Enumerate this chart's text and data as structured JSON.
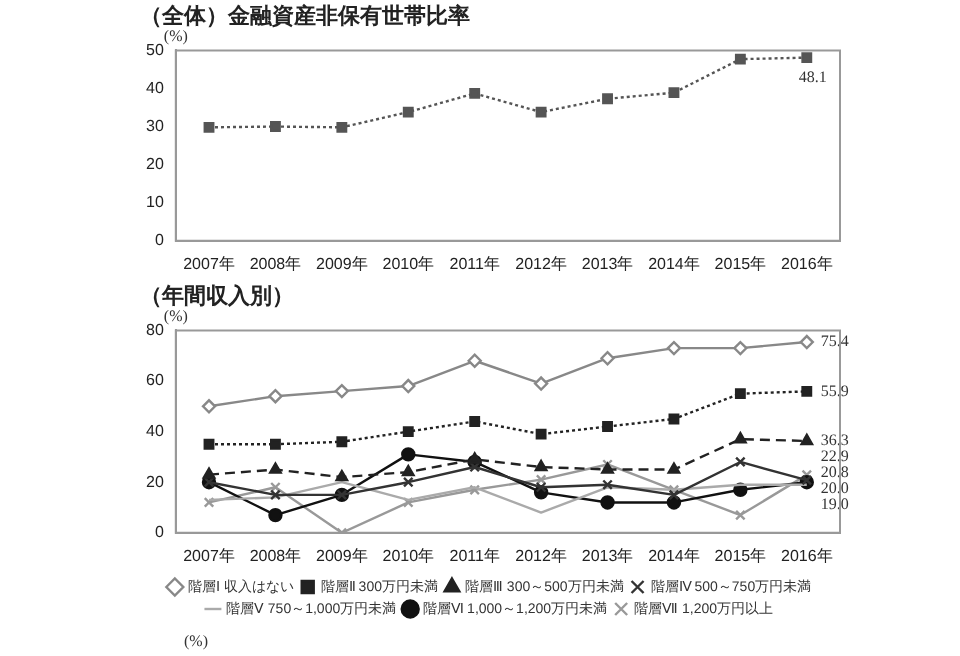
{
  "chart_data": [
    {
      "type": "line",
      "title": "（全体）金融資産非保有世帯比率",
      "ylabel": "(%)",
      "categories": [
        "2007年",
        "2008年",
        "2009年",
        "2010年",
        "2011年",
        "2012年",
        "2013年",
        "2014年",
        "2015年",
        "2016年"
      ],
      "series": [
        {
          "color": "#555555",
          "values": [
            29.8,
            30.0,
            29.8,
            33.8,
            38.7,
            33.8,
            37.3,
            38.9,
            47.7,
            48.1
          ],
          "value_labels": [
            null,
            null,
            null,
            null,
            null,
            null,
            null,
            null,
            null,
            "48.1"
          ],
          "marker": "square",
          "line_style": "dotted"
        }
      ],
      "ylim": [
        0,
        50
      ],
      "yticks": [
        0,
        10,
        20,
        30,
        40,
        50
      ],
      "grid": false,
      "legend": false
    },
    {
      "type": "line",
      "title": "（年間収入別）",
      "ylabel": "(%)",
      "categories": [
        "2007年",
        "2008年",
        "2009年",
        "2010年",
        "2011年",
        "2012年",
        "2013年",
        "2014年",
        "2015年",
        "2016年"
      ],
      "series": [
        {
          "name": "階層Ⅰ 収入はない",
          "color": "#888888",
          "marker": "diamond",
          "line_style": "solid",
          "values": [
            50,
            54,
            56,
            58,
            68,
            59,
            69,
            73,
            73,
            75.4
          ],
          "value_labels": [
            null,
            null,
            null,
            null,
            null,
            null,
            null,
            null,
            null,
            "75.4"
          ]
        },
        {
          "name": "階層Ⅱ 300万円未満",
          "color": "#222222",
          "marker": "square",
          "line_style": "dotted",
          "values": [
            35,
            35,
            36,
            40,
            44,
            39,
            42,
            45,
            55,
            55.9
          ],
          "value_labels": [
            null,
            null,
            null,
            null,
            null,
            null,
            null,
            null,
            null,
            "55.9"
          ]
        },
        {
          "name": "階層Ⅲ 300～500万円未満",
          "color": "#222222",
          "marker": "triangle",
          "line_style": "dashed",
          "values": [
            23,
            25,
            22,
            24,
            29,
            26,
            25,
            25,
            37,
            36.3
          ],
          "value_labels": [
            null,
            null,
            null,
            null,
            null,
            null,
            null,
            null,
            null,
            "36.3"
          ]
        },
        {
          "name": "階層Ⅳ 500～750万円未満",
          "color": "#333333",
          "marker": "cross",
          "line_style": "solid",
          "values": [
            20,
            15,
            15,
            20,
            26,
            18,
            19,
            15,
            28,
            20.8
          ],
          "value_labels": [
            null,
            null,
            null,
            null,
            null,
            null,
            null,
            null,
            null,
            "20.8"
          ]
        },
        {
          "name": "階層Ⅴ 750～1,000万円未満",
          "color": "#aaaaaa",
          "marker": "none",
          "line_style": "solid",
          "values": [
            13,
            14,
            20,
            13,
            18,
            8,
            18,
            17,
            19,
            19.0
          ],
          "value_labels": [
            null,
            null,
            null,
            null,
            null,
            null,
            null,
            null,
            null,
            "19.0"
          ]
        },
        {
          "name": "階層Ⅵ 1,000～1,200万円未満",
          "color": "#111111",
          "marker": "circle",
          "line_style": "solid",
          "values": [
            20,
            7,
            15,
            31,
            28,
            16,
            12,
            12,
            17,
            20.0
          ],
          "value_labels": [
            null,
            null,
            null,
            null,
            null,
            null,
            null,
            null,
            null,
            "20.0"
          ]
        },
        {
          "name": "階層Ⅶ 1,200万円以上",
          "color": "#999999",
          "marker": "cross",
          "line_style": "solid",
          "values": [
            12,
            18,
            0,
            12,
            17,
            21,
            27,
            17,
            7,
            22.9
          ],
          "value_labels": [
            null,
            null,
            null,
            null,
            null,
            null,
            null,
            null,
            null,
            "22.9"
          ]
        }
      ],
      "ylim": [
        0,
        80
      ],
      "yticks": [
        0,
        20,
        40,
        60,
        80
      ],
      "grid": false,
      "legend": "bottom",
      "annotations": [
        "(%)"
      ]
    }
  ]
}
